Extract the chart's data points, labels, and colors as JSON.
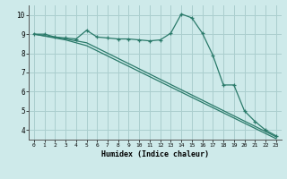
{
  "line1_x": [
    0,
    1,
    2,
    3,
    4,
    5,
    6,
    7,
    8,
    9,
    10,
    11,
    12,
    13,
    14,
    15,
    16,
    17,
    18,
    19,
    20,
    21,
    22,
    23
  ],
  "line1_y": [
    9.0,
    9.0,
    8.85,
    8.8,
    8.75,
    9.2,
    8.85,
    8.8,
    8.75,
    8.75,
    8.7,
    8.65,
    8.7,
    9.05,
    10.05,
    9.85,
    9.05,
    7.9,
    6.35,
    6.35,
    5.0,
    4.45,
    4.0,
    3.7
  ],
  "line2_x": [
    0,
    3,
    4,
    5,
    23
  ],
  "line2_y": [
    9.0,
    8.75,
    8.65,
    8.55,
    3.65
  ],
  "line3_x": [
    0,
    3,
    4,
    5,
    23
  ],
  "line3_y": [
    9.0,
    8.7,
    8.55,
    8.4,
    3.55
  ],
  "line_color": "#2a7a6a",
  "bg_color": "#ceeaea",
  "grid_color": "#aacece",
  "xlabel": "Humidex (Indice chaleur)",
  "xlim": [
    -0.5,
    23.5
  ],
  "ylim": [
    3.5,
    10.5
  ],
  "yticks": [
    4,
    5,
    6,
    7,
    8,
    9,
    10
  ],
  "xticks": [
    0,
    1,
    2,
    3,
    4,
    5,
    6,
    7,
    8,
    9,
    10,
    11,
    12,
    13,
    14,
    15,
    16,
    17,
    18,
    19,
    20,
    21,
    22,
    23
  ]
}
